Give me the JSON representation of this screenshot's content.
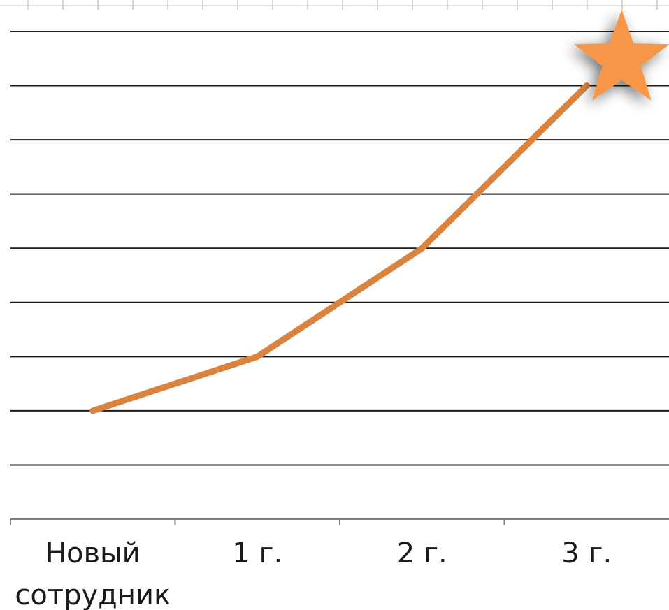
{
  "chart_data": {
    "type": "line",
    "categories": [
      "Новый сотрудник",
      "1 г.",
      "2 г.",
      "3 г."
    ],
    "category_lines": [
      [
        "Новый",
        "сотрудник"
      ],
      [
        "1 г."
      ],
      [
        "2 г."
      ],
      [
        "3 г."
      ]
    ],
    "series": [
      {
        "values": [
          2,
          3,
          5,
          8
        ]
      }
    ],
    "ylim": [
      0,
      9
    ],
    "y_gridlines": [
      1,
      2,
      3,
      4,
      5,
      6,
      7,
      8,
      9
    ],
    "y_tick_labels_shown": false,
    "title": "",
    "xlabel": "",
    "ylabel": "",
    "grid": true,
    "legend": "none",
    "markers": {
      "last_point": "star-icon"
    },
    "colors": {
      "line": "#d9833f",
      "star": "#f79646",
      "grid": "#1a1a1a",
      "axis": "#7f7f7f",
      "text": "#1a1a1a"
    }
  }
}
